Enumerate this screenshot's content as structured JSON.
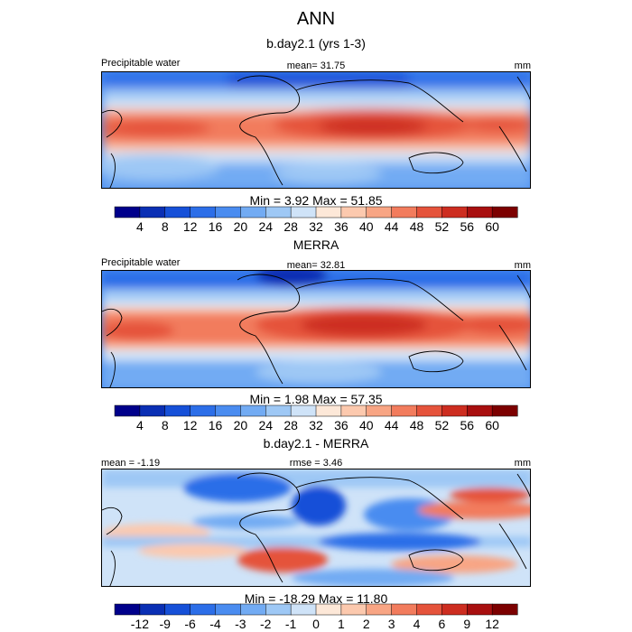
{
  "title": "ANN",
  "chart_data": [
    {
      "type": "heatmap",
      "title": "b.day2.1 (yrs 1-3)",
      "left_label": "Precipitable water",
      "center_label": "mean=  31.75",
      "units": "mm",
      "min_max": "Min =   3.92 Max =  51.85",
      "colorbar_levels": [
        "4",
        "8",
        "12",
        "16",
        "20",
        "24",
        "28",
        "32",
        "36",
        "40",
        "44",
        "48",
        "52",
        "56",
        "60"
      ],
      "colorbar_colors": [
        "#00008b",
        "#0a2fb4",
        "#1650d8",
        "#2c6ee8",
        "#4a8cf0",
        "#72abf3",
        "#9ec8f5",
        "#cfe3f8",
        "#fde8d8",
        "#fcc9ae",
        "#f8a584",
        "#f27c5d",
        "#e5533b",
        "#cd2d20",
        "#a80f0f",
        "#7c0000"
      ],
      "ylim": [
        -60,
        60
      ],
      "xlim": [
        0,
        360
      ]
    },
    {
      "type": "heatmap",
      "title": "MERRA",
      "left_label": "Precipitable water",
      "center_label": "mean=  32.81",
      "units": "mm",
      "min_max": "Min =   1.98 Max =  57.35",
      "colorbar_levels": [
        "4",
        "8",
        "12",
        "16",
        "20",
        "24",
        "28",
        "32",
        "36",
        "40",
        "44",
        "48",
        "52",
        "56",
        "60"
      ],
      "colorbar_colors": [
        "#00008b",
        "#0a2fb4",
        "#1650d8",
        "#2c6ee8",
        "#4a8cf0",
        "#72abf3",
        "#9ec8f5",
        "#cfe3f8",
        "#fde8d8",
        "#fcc9ae",
        "#f8a584",
        "#f27c5d",
        "#e5533b",
        "#cd2d20",
        "#a80f0f",
        "#7c0000"
      ],
      "ylim": [
        -60,
        60
      ],
      "xlim": [
        0,
        360
      ]
    },
    {
      "type": "heatmap",
      "title": "b.day2.1 - MERRA",
      "left_label": "mean =  -1.19",
      "center_label": "rmse =   3.46",
      "units": "mm",
      "min_max": "Min = -18.29 Max =  11.80",
      "colorbar_levels": [
        "-12",
        "-9",
        "-6",
        "-4",
        "-3",
        "-2",
        "-1",
        "0",
        "1",
        "2",
        "3",
        "4",
        "6",
        "9",
        "12"
      ],
      "colorbar_colors": [
        "#00008b",
        "#0a2fb4",
        "#1650d8",
        "#2c6ee8",
        "#4a8cf0",
        "#72abf3",
        "#9ec8f5",
        "#cfe3f8",
        "#fde8d8",
        "#fcc9ae",
        "#f8a584",
        "#f27c5d",
        "#e5533b",
        "#cd2d20",
        "#a80f0f",
        "#7c0000"
      ],
      "ylim": [
        -60,
        60
      ],
      "xlim": [
        0,
        360
      ]
    }
  ]
}
